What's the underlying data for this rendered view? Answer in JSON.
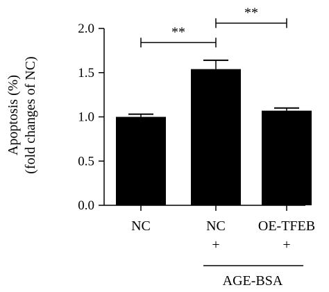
{
  "chart_data": {
    "type": "bar",
    "ylabel_line1": "Apoptosis (%)",
    "ylabel_line2": "(fold changes of NC)",
    "ylim": [
      0,
      2.0
    ],
    "yticks": [
      "0.0",
      "0.5",
      "1.0",
      "1.5",
      "2.0"
    ],
    "ytick_values": [
      0,
      0.5,
      1.0,
      1.5,
      2.0
    ],
    "categories": [
      {
        "line1": "NC",
        "line2": ""
      },
      {
        "line1": "NC",
        "line2": "+"
      },
      {
        "line1": "OE-TFEB",
        "line2": "+"
      }
    ],
    "values": [
      1.0,
      1.54,
      1.07
    ],
    "errors": [
      0.03,
      0.1,
      0.03
    ],
    "bar_color": "#000000",
    "group_label": "AGE-BSA",
    "significance": [
      {
        "from": 0,
        "to": 1,
        "label": "**",
        "y": 1.84
      },
      {
        "from": 1,
        "to": 2,
        "label": "**",
        "y": 2.06
      }
    ],
    "grid": false
  }
}
